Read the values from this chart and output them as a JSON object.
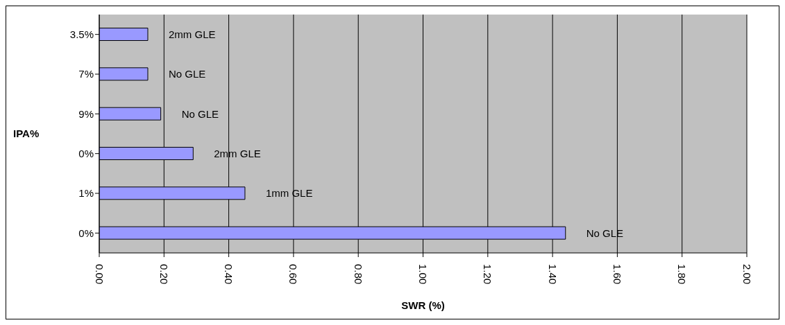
{
  "chart_data": {
    "type": "bar",
    "orientation": "horizontal",
    "xlabel": "SWR (%)",
    "ylabel": "IPA%",
    "categories": [
      "3.5%",
      "7%",
      "9%",
      "0%",
      "1%",
      "0%"
    ],
    "values": [
      0.15,
      0.15,
      0.19,
      0.29,
      0.45,
      1.44
    ],
    "annotations": [
      "2mm GLE",
      "No GLE",
      "No GLE",
      "2mm GLE",
      "1mm GLE",
      "No GLE"
    ],
    "color": "#9999ff",
    "xlim": [
      0,
      2
    ],
    "xticks": [
      {
        "value": 0,
        "label": "0.00"
      },
      {
        "value": 0.2,
        "label": "0.20"
      },
      {
        "value": 0.4,
        "label": "0.40"
      },
      {
        "value": 0.6,
        "label": "0.60"
      },
      {
        "value": 0.8,
        "label": "0.80"
      },
      {
        "value": 1,
        "label": "1.00"
      },
      {
        "value": 1.2,
        "label": "1.20"
      },
      {
        "value": 1.4,
        "label": "1.40"
      },
      {
        "value": 1.6,
        "label": "1.60"
      },
      {
        "value": 1.8,
        "label": "1.80"
      },
      {
        "value": 2,
        "label": "2.00"
      }
    ],
    "grid": "x",
    "legend": false
  }
}
